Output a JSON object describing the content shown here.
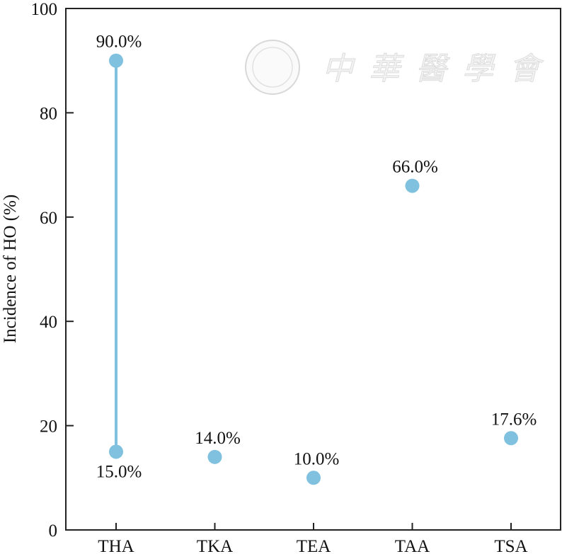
{
  "chart_data": {
    "type": "scatter",
    "title": "",
    "xlabel": "",
    "ylabel": "Incidence of HO (%)",
    "ylim": [
      0,
      100
    ],
    "yticks": [
      0,
      20,
      40,
      60,
      80,
      100
    ],
    "categories": [
      "THA",
      "TKA",
      "TEA",
      "TAA",
      "TSA"
    ],
    "points": [
      {
        "category": "THA",
        "value": 90.0,
        "label": "90.0%",
        "label_pos": "above"
      },
      {
        "category": "THA",
        "value": 15.0,
        "label": "15.0%",
        "label_pos": "below"
      },
      {
        "category": "TKA",
        "value": 14.0,
        "label": "14.0%",
        "label_pos": "above"
      },
      {
        "category": "TEA",
        "value": 10.0,
        "label": "10.0%",
        "label_pos": "above"
      },
      {
        "category": "TAA",
        "value": 66.0,
        "label": "66.0%",
        "label_pos": "above"
      },
      {
        "category": "TSA",
        "value": 17.6,
        "label": "17.6%",
        "label_pos": "above"
      }
    ],
    "ranges": [
      {
        "category": "THA",
        "from": 15.0,
        "to": 90.0
      }
    ],
    "grid": false,
    "marker_color": "#7fc1df",
    "watermark": "中華醫學會"
  }
}
